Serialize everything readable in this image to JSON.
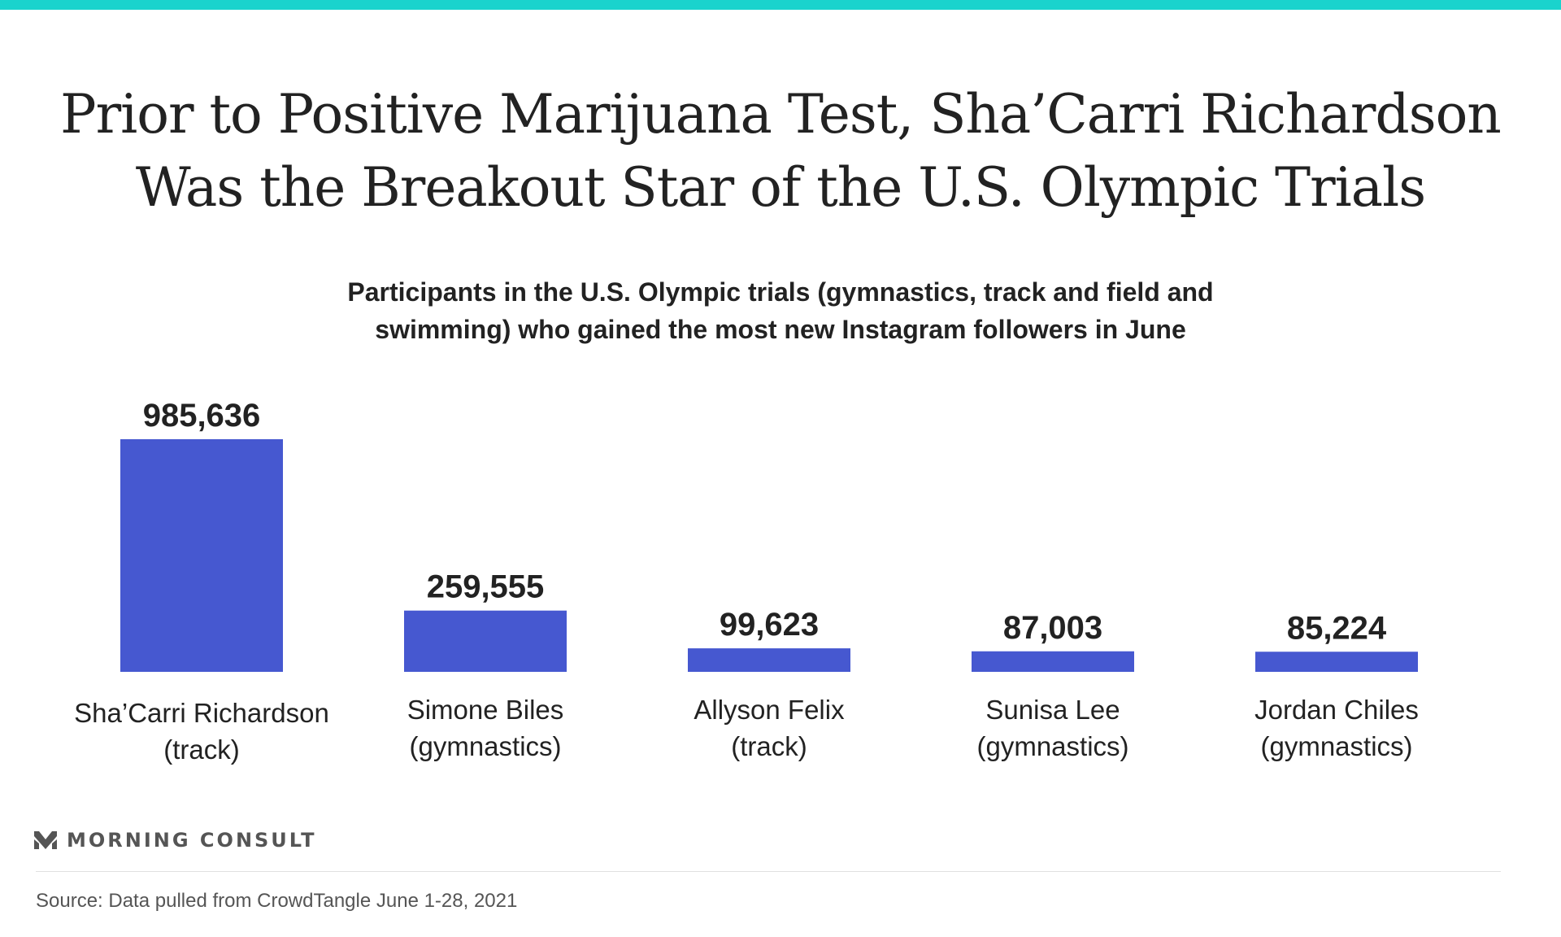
{
  "header": {
    "title_line1": "Prior to Positive Marijuana Test, Sha’Carri Richardson",
    "title_line2": "Was the Breakout Star of the U.S. Olympic Trials",
    "subtitle_line1": "Participants in the U.S. Olympic trials (gymnastics, track and field and",
    "subtitle_line2": "swimming) who gained the most new Instagram followers in June"
  },
  "colors": {
    "accent": "#1ad3cd",
    "bar": "#4658d0",
    "text": "#222222",
    "muted": "#555555"
  },
  "chart_data": {
    "type": "bar",
    "categories": [
      "Sha’Carri Richardson (track)",
      "Simone Biles (gymnastics)",
      "Allyson Felix (track)",
      "Sunisa Lee (gymnastics)",
      "Jordan Chiles (gymnastics)"
    ],
    "category_lines": [
      [
        "Sha’Carri Richardson",
        "(track)"
      ],
      [
        "Simone Biles",
        "(gymnastics)"
      ],
      [
        "Allyson Felix",
        "(track)"
      ],
      [
        "Sunisa Lee",
        "(gymnastics)"
      ],
      [
        "Jordan Chiles",
        "(gymnastics)"
      ]
    ],
    "values": [
      985636,
      259555,
      99623,
      87003,
      85224
    ],
    "value_labels": [
      "985,636",
      "259,555",
      "99,623",
      "87,003",
      "85,224"
    ],
    "ylim": [
      0,
      985636
    ],
    "grid": false,
    "legend": "none"
  },
  "brand": {
    "name": "MORNING CONSULT",
    "logo_icon": "morning-consult-m-icon"
  },
  "footer": {
    "source": "Source: Data pulled from CrowdTangle June 1-28, 2021"
  }
}
